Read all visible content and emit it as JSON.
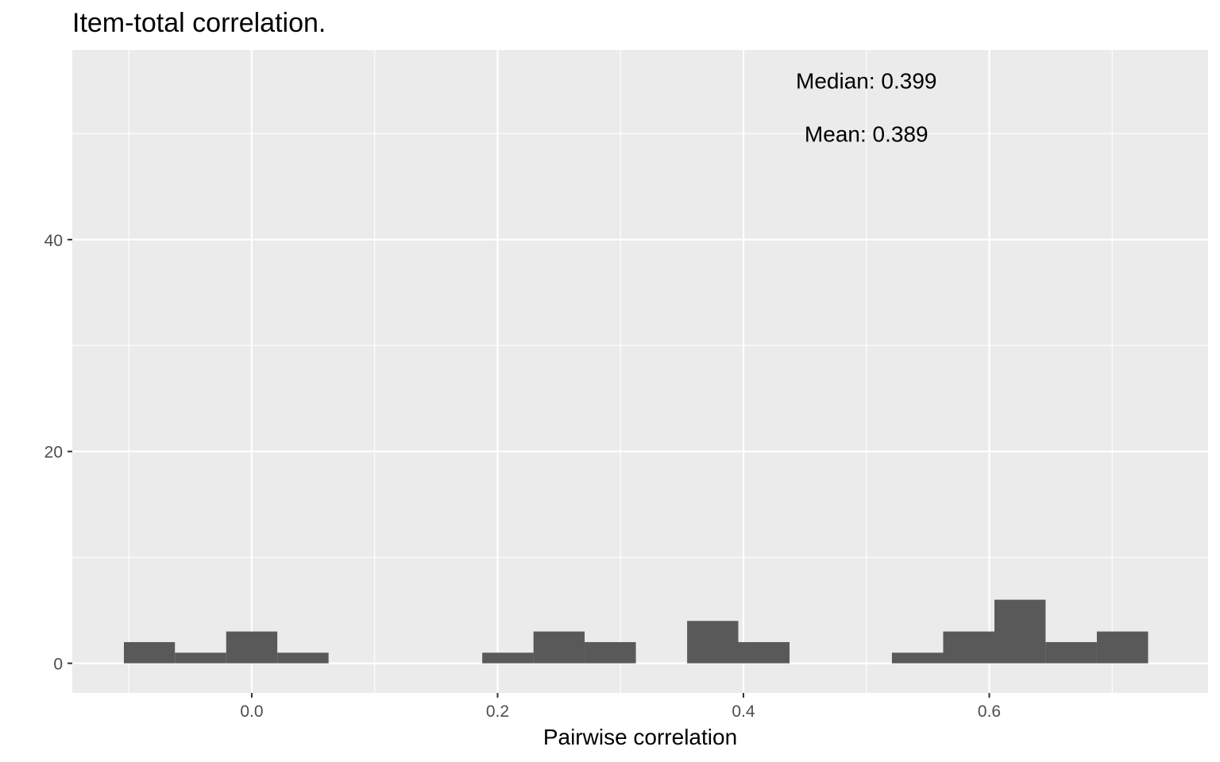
{
  "chart_data": {
    "type": "bar",
    "subtype": "histogram",
    "title": "Item-total correlation.",
    "xlabel": "Pairwise correlation",
    "ylabel": "",
    "xlim": [
      -0.146,
      0.778
    ],
    "ylim": [
      -2.8,
      57.9
    ],
    "x_ticks": [
      0.0,
      0.2,
      0.4,
      0.6
    ],
    "x_tick_labels": [
      "0.0",
      "0.2",
      "0.4",
      "0.6"
    ],
    "y_ticks": [
      0,
      20,
      40
    ],
    "y_tick_labels": [
      "0",
      "20",
      "40"
    ],
    "bin_width": 0.0417,
    "bins": [
      {
        "x0": -0.104,
        "x1": -0.0625,
        "count": 2
      },
      {
        "x0": -0.0625,
        "x1": -0.0208,
        "count": 1
      },
      {
        "x0": -0.0208,
        "x1": 0.0208,
        "count": 3
      },
      {
        "x0": 0.0208,
        "x1": 0.0625,
        "count": 1
      },
      {
        "x0": 0.1875,
        "x1": 0.2292,
        "count": 1
      },
      {
        "x0": 0.2292,
        "x1": 0.2708,
        "count": 3
      },
      {
        "x0": 0.2708,
        "x1": 0.3125,
        "count": 2
      },
      {
        "x0": 0.3542,
        "x1": 0.3958,
        "count": 4
      },
      {
        "x0": 0.3958,
        "x1": 0.4375,
        "count": 2
      },
      {
        "x0": 0.5208,
        "x1": 0.5625,
        "count": 1
      },
      {
        "x0": 0.5625,
        "x1": 0.6042,
        "count": 3
      },
      {
        "x0": 0.6042,
        "x1": 0.6458,
        "count": 6
      },
      {
        "x0": 0.6458,
        "x1": 0.6875,
        "count": 2
      },
      {
        "x0": 0.6875,
        "x1": 0.7292,
        "count": 3
      }
    ],
    "annotations": [
      {
        "text": "Median: 0.399",
        "x": 0.5,
        "y": 55
      },
      {
        "text": "Mean: 0.389",
        "x": 0.5,
        "y": 50
      }
    ],
    "grid": true,
    "legend": "none",
    "colors": {
      "panel": "#ebebeb",
      "grid": "#ffffff",
      "bar": "#595959",
      "tick": "#4d4d4d",
      "tick_mark": "#333333"
    }
  }
}
